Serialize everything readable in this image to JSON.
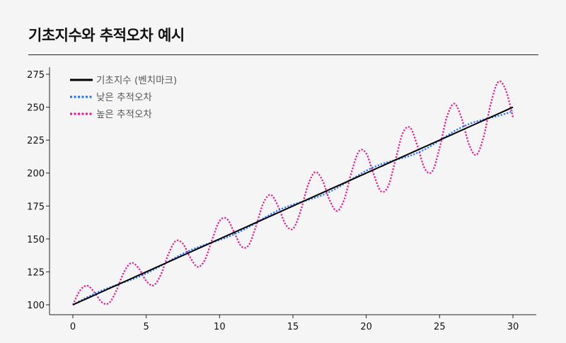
{
  "title": "기초지수와 추적오차 예시",
  "chart_data": {
    "type": "line",
    "xlim": [
      0,
      30
    ],
    "ylim": [
      100,
      275
    ],
    "xticks": [
      0,
      5,
      10,
      15,
      20,
      25,
      30
    ],
    "yticks": [
      100,
      125,
      150,
      175,
      200,
      225,
      250,
      275
    ],
    "grid": false,
    "legend_placement": "top-left",
    "series": [
      {
        "name": "기초지수 (벤치마크)",
        "color": "#000000",
        "style": "solid",
        "x": [
          0,
          1,
          2,
          3,
          4,
          5,
          6,
          7,
          8,
          9,
          10,
          11,
          12,
          13,
          14,
          15,
          16,
          17,
          18,
          19,
          20,
          21,
          22,
          23,
          24,
          25,
          26,
          27,
          28,
          29,
          30
        ],
        "y": [
          100,
          105,
          110,
          115,
          120,
          125,
          130,
          135,
          140,
          145,
          150,
          155,
          160,
          165,
          170,
          175,
          180,
          185,
          190,
          195,
          200,
          205,
          210,
          215,
          220,
          225,
          230,
          235,
          240,
          245,
          250
        ]
      },
      {
        "name": "낮은 추적오차",
        "color": "#1f6fff",
        "style": "dotted",
        "x": [
          0,
          1,
          2,
          3,
          4,
          5,
          6,
          7,
          8,
          9,
          10,
          11,
          12,
          13,
          14,
          15,
          16,
          17,
          18,
          19,
          20,
          21,
          22,
          23,
          24,
          25,
          26,
          27,
          28,
          29,
          30
        ],
        "y": [
          100,
          105.9,
          111.0,
          115.2,
          119.1,
          123.8,
          129.6,
          135.9,
          141.4,
          145.6,
          149.2,
          153.5,
          159.1,
          165.7,
          171.7,
          176.1,
          179.5,
          183.2,
          188.6,
          195.3,
          201.8,
          206.7,
          210.0,
          213.2,
          218.0,
          224.7,
          231.8,
          237.2,
          240.7,
          243.4,
          247.0
        ]
      },
      {
        "name": "높은 추적오차",
        "color": "#e8128c",
        "style": "dotted",
        "x": [
          0,
          0.5,
          1,
          1.5,
          2,
          2.5,
          3,
          3.5,
          4,
          4.5,
          5,
          5.5,
          6,
          6.5,
          7,
          7.5,
          8,
          8.5,
          9,
          9.5,
          10,
          10.5,
          11,
          11.5,
          12,
          12.5,
          13,
          13.5,
          14,
          14.5,
          15,
          15.5,
          16,
          16.5,
          17,
          17.5,
          18,
          18.5,
          19,
          19.5,
          20,
          20.5,
          21,
          21.5,
          22,
          22.5,
          23,
          23.5,
          24,
          24.5,
          25,
          25.5,
          26,
          26.5,
          27,
          27.5,
          28,
          28.5,
          29,
          29.5,
          30
        ],
        "y": [
          100,
          111.1,
          114.5,
          109.0,
          101.7,
          101.7,
          111.8,
          125.2,
          131.9,
          127.5,
          118.2,
          114.8,
          123.0,
          138.1,
          148.4,
          146.4,
          136.0,
          128.8,
          134.1,
          149.7,
          163.7,
          165.3,
          154.9,
          144.2,
          145.5,
          160.3,
          177.6,
          183.5,
          174.6,
          161.1,
          157.7,
          170.3,
          189.9,
          200.7,
          194.8,
          179.5,
          171.2,
          180.1,
          200.8,
          216.5,
          214.9,
          199.3,
          186.2,
          190.2,
          210.4,
          230.6,
          234.4,
          220.2,
          203.1,
          201.3,
          219.1,
          242.7,
          252.7,
          241.7,
          221.9,
          213.8,
          227.5,
          253.1,
          269.3,
          263.3,
          242.4
        ]
      }
    ]
  }
}
